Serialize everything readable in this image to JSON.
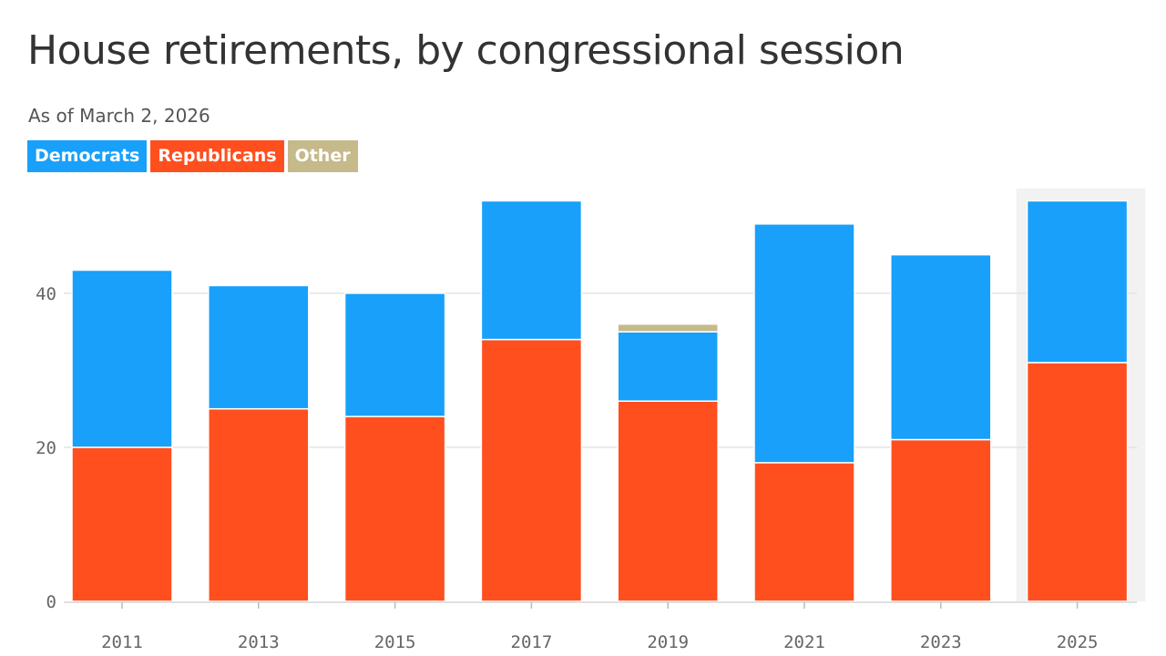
{
  "chart_data": {
    "type": "bar",
    "stacked": true,
    "title": "House retirements, by congressional session",
    "subtitle": "As of March 2, 2026",
    "xlabel": "",
    "ylabel": "",
    "categories": [
      "2011",
      "2013",
      "2015",
      "2017",
      "2019",
      "2021",
      "2023",
      "2025"
    ],
    "series": [
      {
        "name": "Republicans",
        "color": "#ff4f1f",
        "values": [
          20,
          25,
          24,
          34,
          26,
          18,
          21,
          31
        ]
      },
      {
        "name": "Democrats",
        "color": "#18a0fb",
        "values": [
          23,
          16,
          16,
          18,
          9,
          31,
          24,
          21
        ]
      },
      {
        "name": "Other",
        "color": "#c6b98a",
        "values": [
          0,
          0,
          0,
          0,
          1,
          0,
          0,
          0
        ]
      }
    ],
    "legend_order": [
      "Democrats",
      "Republicans",
      "Other"
    ],
    "yticks": [
      0,
      20,
      40
    ],
    "ylim": [
      0,
      53
    ],
    "grid": true,
    "highlight_category": "2025",
    "highlight_color": "#f2f2f2"
  }
}
